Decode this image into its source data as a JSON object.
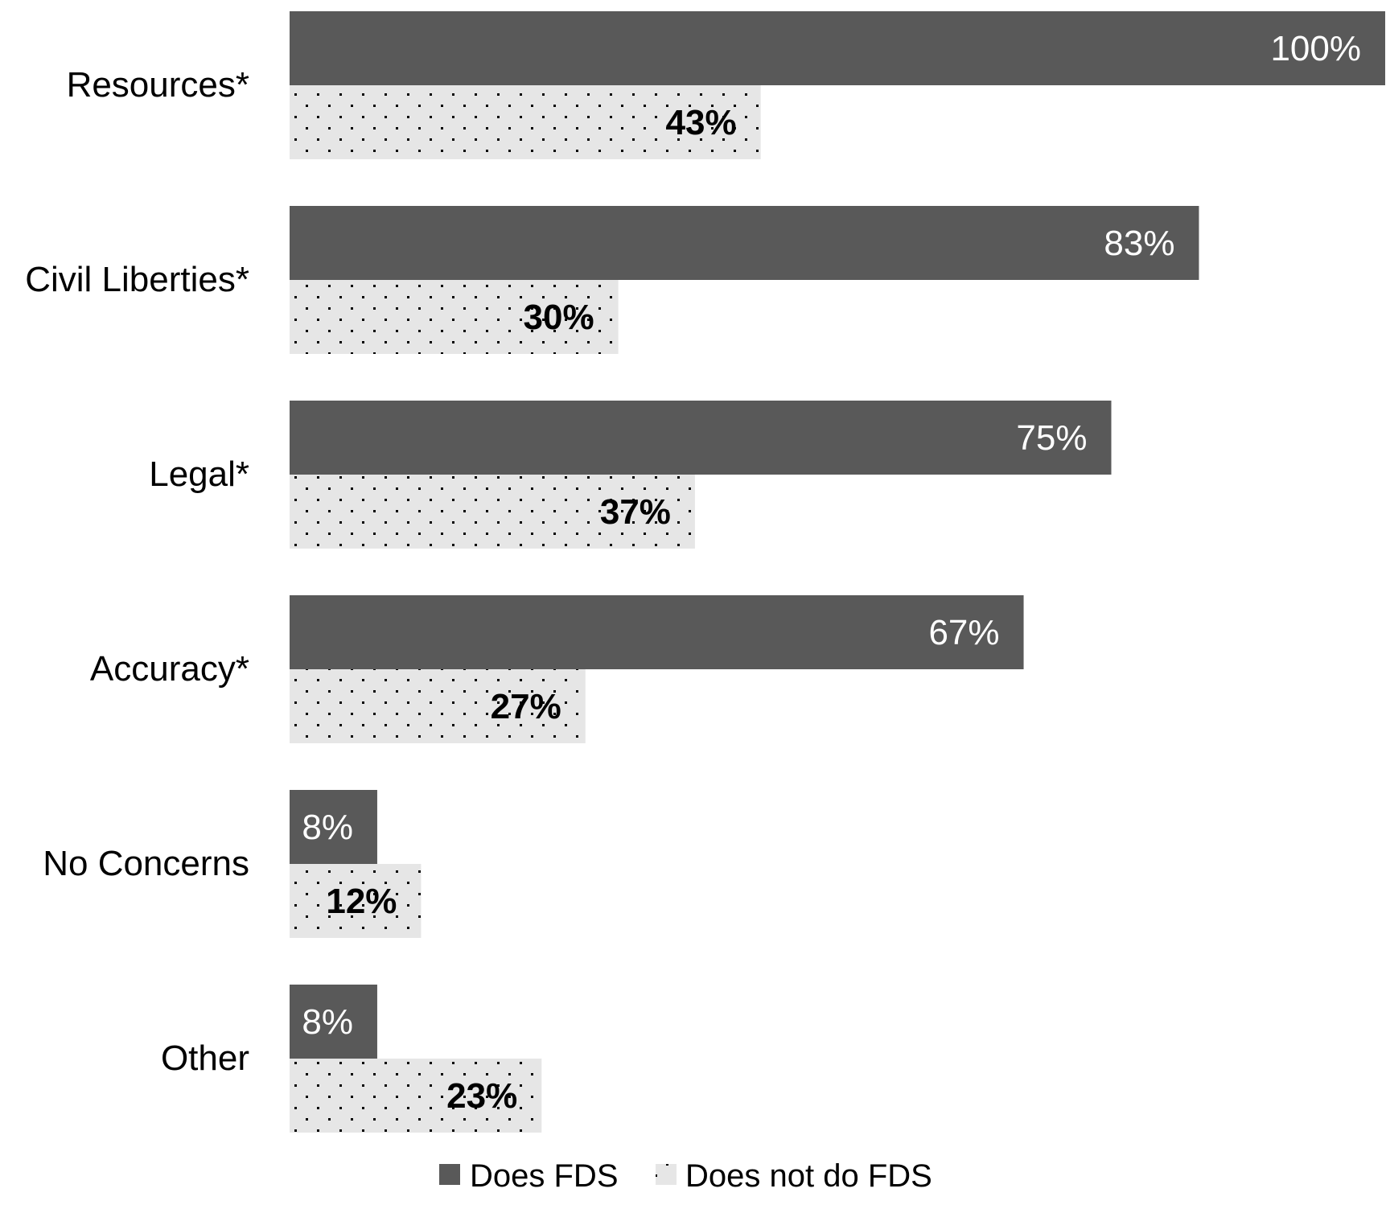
{
  "chart_data": {
    "type": "bar",
    "orientation": "horizontal",
    "categories": [
      "Resources*",
      "Civil Liberties*",
      "Legal*",
      "Accuracy*",
      "No Concerns",
      "Other"
    ],
    "series": [
      {
        "name": "Does FDS",
        "values": [
          100,
          83,
          75,
          67,
          8,
          8
        ],
        "labels": [
          "100%",
          "83%",
          "75%",
          "67%",
          "8%",
          "8%"
        ],
        "color": "#595959",
        "pattern": "solid"
      },
      {
        "name": "Does not do FDS",
        "values": [
          43,
          30,
          37,
          27,
          12,
          23
        ],
        "labels": [
          "43%",
          "30%",
          "37%",
          "27%",
          "12%",
          "23%"
        ],
        "color": "#e6e6e6",
        "pattern": "dotted"
      }
    ],
    "xlim": [
      0,
      100
    ],
    "value_unit": "%",
    "grid": false,
    "legend": "bottom"
  }
}
